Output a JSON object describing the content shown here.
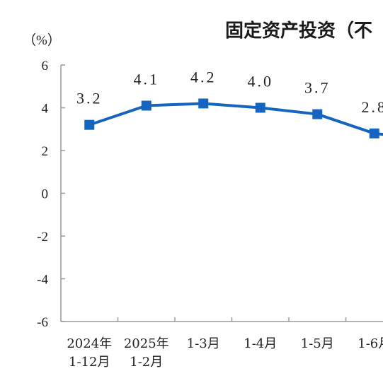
{
  "chart_data": {
    "type": "line",
    "title": "固定资产投资（不",
    "unit_label": "（%）",
    "categories": [
      [
        "2024年",
        "1-12月"
      ],
      [
        "2025年",
        "1-2月"
      ],
      [
        "1-3月"
      ],
      [
        "1-4月"
      ],
      [
        "1-5月"
      ],
      [
        "1-6月"
      ]
    ],
    "series": [
      {
        "values": [
          3.2,
          4.1,
          4.2,
          4.0,
          3.7,
          2.8
        ],
        "labels": [
          "3.2",
          "4.1",
          "4.2",
          "4.0",
          "3.7",
          "2.8"
        ],
        "color": "#1565c0"
      }
    ],
    "continuation_value": 2.5,
    "ylim": [
      -6,
      6
    ],
    "yticks": [
      6,
      4,
      2,
      0,
      -2,
      -4,
      -6
    ],
    "ytick_labels": [
      "6",
      "4",
      "2",
      "0",
      "-2",
      "-4",
      "-6"
    ],
    "grid": false
  }
}
